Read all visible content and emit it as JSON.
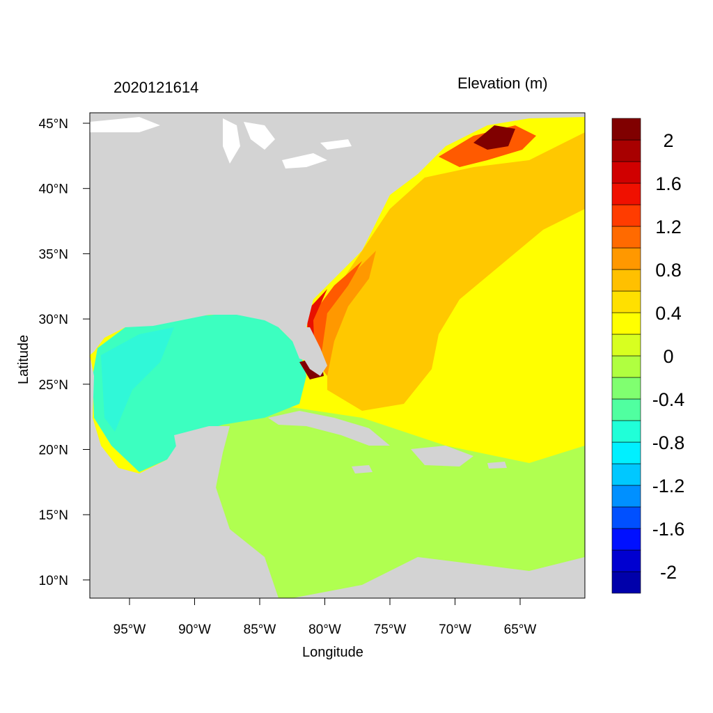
{
  "title_left": "2020121614",
  "title_right": "Elevation (m)",
  "xlabel": "Longitude",
  "ylabel": "Latitude",
  "lon_ticks": [
    "95°W",
    "90°W",
    "85°W",
    "80°W",
    "75°W",
    "70°W",
    "65°W"
  ],
  "lat_ticks": [
    "45°N",
    "40°N",
    "35°N",
    "30°N",
    "25°N",
    "20°N",
    "15°N",
    "10°N"
  ],
  "colorbar": {
    "colors": [
      "#0000aa",
      "#0000d0",
      "#0010ff",
      "#0050ff",
      "#0090ff",
      "#00c8ff",
      "#00f0ff",
      "#20ffd8",
      "#50ffa0",
      "#80ff70",
      "#b0ff40",
      "#d8ff20",
      "#ffff00",
      "#ffe000",
      "#ffc000",
      "#ff9800",
      "#ff6a00",
      "#ff3c00",
      "#f01000",
      "#d00000",
      "#a80000",
      "#800000"
    ],
    "labels": [
      "2",
      "1.6",
      "1.2",
      "0.8",
      "0.4",
      "0",
      "-0.4",
      "-0.8",
      "-1.2",
      "-1.6",
      "-2"
    ]
  },
  "map_colors": {
    "land": "#d3d3d3",
    "lakes": "#ffffff",
    "gulf": "#3cffc0",
    "gulf_inner": "#30f8d8",
    "caribbean": "#b0ff50",
    "atlantic_far": "#ffff00",
    "atlantic_mid": "#ffc800",
    "coast_high1": "#ff9800",
    "coast_high2": "#ff5a00",
    "coast_high3": "#e81000",
    "coast_high4": "#800000"
  }
}
